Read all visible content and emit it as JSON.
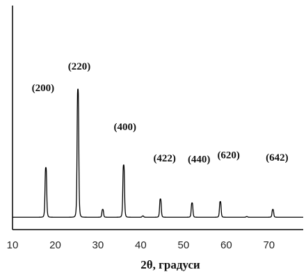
{
  "chart_data": {
    "type": "line",
    "title": "",
    "xlabel": "2θ, градуси",
    "ylabel": "",
    "xlim": [
      10,
      78
    ],
    "ylim": [
      0,
      100
    ],
    "grid": false,
    "legend": "none",
    "x_ticks": [
      10,
      20,
      30,
      40,
      50,
      60,
      70
    ],
    "baseline": 2,
    "peaks": [
      {
        "x": 17.8,
        "y": 40,
        "label": "(200)"
      },
      {
        "x": 25.3,
        "y": 100,
        "label": "(220)"
      },
      {
        "x": 31.1,
        "y": 8,
        "label": ""
      },
      {
        "x": 36.0,
        "y": 42,
        "label": "(400)"
      },
      {
        "x": 40.5,
        "y": 3,
        "label": ""
      },
      {
        "x": 44.6,
        "y": 16,
        "label": "(422)"
      },
      {
        "x": 52.0,
        "y": 13,
        "label": "(440)"
      },
      {
        "x": 55.8,
        "y": 2,
        "label": ""
      },
      {
        "x": 58.6,
        "y": 14,
        "label": "(620)"
      },
      {
        "x": 64.8,
        "y": 2.5,
        "label": ""
      },
      {
        "x": 70.9,
        "y": 8,
        "label": "(642)"
      },
      {
        "x": 76.5,
        "y": 2,
        "label": ""
      }
    ],
    "line_color": "#000000"
  }
}
